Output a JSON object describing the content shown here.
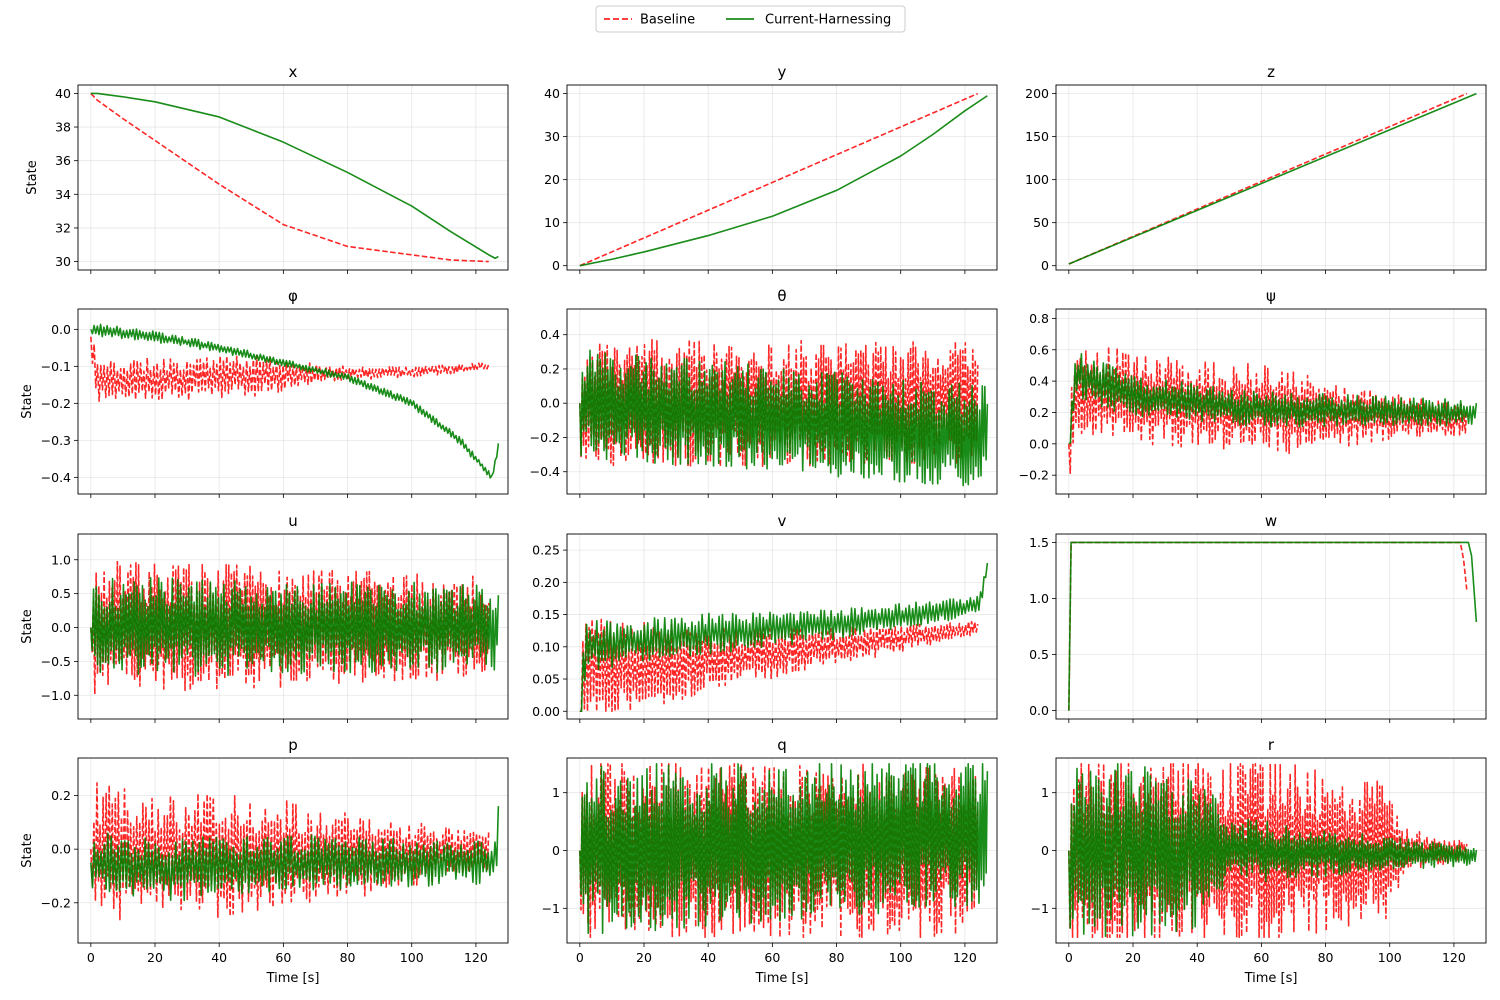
{
  "chart_data": {
    "type": "line",
    "legend": {
      "placement": "top-center",
      "entries": [
        {
          "name": "Baseline",
          "color": "#ff0000",
          "style": "dashed"
        },
        {
          "name": "Current-Harnessing",
          "color": "#008000",
          "style": "solid"
        }
      ]
    },
    "xlabel": "Time [s]",
    "ylabel": "State",
    "xlim": [
      -4,
      130
    ],
    "xticks": [
      0,
      20,
      40,
      60,
      80,
      100,
      120
    ],
    "grid": true,
    "series_names": [
      "Baseline",
      "Current-Harnessing"
    ],
    "panels": [
      {
        "title": "x",
        "ylim": [
          29.5,
          40.5
        ],
        "yticks": [
          30,
          32,
          34,
          36,
          38,
          40
        ],
        "ytick_labels": [
          "30",
          "32",
          "34",
          "36",
          "38",
          "40"
        ],
        "baseline": {
          "kind": "points",
          "points": [
            [
              0,
              40
            ],
            [
              2,
              39.6
            ],
            [
              10,
              38.5
            ],
            [
              20,
              37.2
            ],
            [
              40,
              34.6
            ],
            [
              60,
              32.2
            ],
            [
              80,
              30.9
            ],
            [
              100,
              30.4
            ],
            [
              112,
              30.1
            ],
            [
              124,
              30.0
            ]
          ]
        },
        "current": {
          "kind": "points",
          "points": [
            [
              0,
              40
            ],
            [
              2,
              40
            ],
            [
              10,
              39.8
            ],
            [
              20,
              39.5
            ],
            [
              40,
              38.6
            ],
            [
              60,
              37.1
            ],
            [
              80,
              35.3
            ],
            [
              100,
              33.3
            ],
            [
              112,
              31.8
            ],
            [
              124,
              30.4
            ],
            [
              126,
              30.2
            ],
            [
              127,
              30.3
            ]
          ]
        }
      },
      {
        "title": "y",
        "ylim": [
          -1,
          42
        ],
        "yticks": [
          0,
          10,
          20,
          30,
          40
        ],
        "ytick_labels": [
          "0",
          "10",
          "20",
          "30",
          "40"
        ],
        "baseline": {
          "kind": "points",
          "points": [
            [
              0,
              0
            ],
            [
              124,
              40
            ]
          ]
        },
        "current": {
          "kind": "points",
          "points": [
            [
              0,
              0
            ],
            [
              10,
              1.5
            ],
            [
              20,
              3.2
            ],
            [
              40,
              7
            ],
            [
              60,
              11.5
            ],
            [
              80,
              17.5
            ],
            [
              100,
              25.5
            ],
            [
              110,
              30.5
            ],
            [
              120,
              36
            ],
            [
              127,
              39.5
            ]
          ]
        }
      },
      {
        "title": "z",
        "ylim": [
          -5,
          210
        ],
        "yticks": [
          0,
          50,
          100,
          150,
          200
        ],
        "ytick_labels": [
          "0",
          "50",
          "100",
          "150",
          "200"
        ],
        "baseline": {
          "kind": "points",
          "points": [
            [
              0,
              2
            ],
            [
              124,
              200
            ]
          ]
        },
        "current": {
          "kind": "points",
          "points": [
            [
              0,
              2
            ],
            [
              127,
              200
            ]
          ]
        }
      },
      {
        "title": "φ",
        "ylim": [
          -0.445,
          0.055
        ],
        "yticks": [
          -0.4,
          -0.3,
          -0.2,
          -0.1,
          0.0
        ],
        "ytick_labels": [
          "−0.4",
          "−0.3",
          "−0.2",
          "−0.1",
          "0.0"
        ],
        "baseline": {
          "kind": "noise",
          "seed": 11,
          "t_end": 124,
          "n": 240,
          "min": -0.2,
          "max": 0.0,
          "trend": [
            [
              0,
              -0.02
            ],
            [
              2,
              -0.14
            ],
            [
              40,
              -0.13
            ],
            [
              70,
              -0.12
            ],
            [
              100,
              -0.115
            ],
            [
              124,
              -0.1
            ]
          ],
          "amp": [
            [
              0,
              0.06
            ],
            [
              50,
              0.06
            ],
            [
              75,
              0.02
            ],
            [
              124,
              0.01
            ]
          ]
        },
        "current": {
          "kind": "noise",
          "seed": 21,
          "t_end": 127,
          "n": 250,
          "min": -0.43,
          "max": 0.04,
          "trend": [
            [
              0,
              0.0
            ],
            [
              20,
              -0.02
            ],
            [
              40,
              -0.05
            ],
            [
              60,
              -0.09
            ],
            [
              80,
              -0.13
            ],
            [
              100,
              -0.2
            ],
            [
              115,
              -0.3
            ],
            [
              125,
              -0.4
            ],
            [
              127,
              -0.32
            ]
          ],
          "amp": [
            [
              0,
              0.018
            ],
            [
              60,
              0.01
            ],
            [
              127,
              0.012
            ]
          ]
        }
      },
      {
        "title": "θ",
        "ylim": [
          -0.53,
          0.55
        ],
        "yticks": [
          -0.4,
          -0.2,
          0.0,
          0.2,
          0.4
        ],
        "ytick_labels": [
          "−0.4",
          "−0.2",
          "0.0",
          "0.2",
          "0.4"
        ],
        "baseline": {
          "kind": "noise",
          "seed": 3,
          "t_end": 124,
          "n": 320,
          "min": -0.5,
          "max": 0.5,
          "trend": [
            [
              0,
              0
            ],
            [
              124,
              0
            ]
          ],
          "amp": [
            [
              0,
              0.38
            ],
            [
              124,
              0.36
            ]
          ]
        },
        "current": {
          "kind": "noise",
          "seed": 4,
          "t_end": 127,
          "n": 320,
          "min": -0.48,
          "max": 0.5,
          "trend": [
            [
              0,
              0
            ],
            [
              127,
              -0.2
            ]
          ],
          "amp": [
            [
              0,
              0.32
            ],
            [
              127,
              0.3
            ]
          ]
        }
      },
      {
        "title": "ψ",
        "ylim": [
          -0.32,
          0.86
        ],
        "yticks": [
          -0.2,
          0.0,
          0.2,
          0.4,
          0.6,
          0.8
        ],
        "ytick_labels": [
          "−0.2",
          "0.0",
          "0.2",
          "0.4",
          "0.6",
          "0.8"
        ],
        "baseline": {
          "kind": "noise",
          "seed": 5,
          "t_end": 124,
          "n": 280,
          "min": -0.28,
          "max": 0.78,
          "trend": [
            [
              0,
              0.0
            ],
            [
              3,
              0.35
            ],
            [
              40,
              0.25
            ],
            [
              80,
              0.2
            ],
            [
              124,
              0.15
            ]
          ],
          "amp": [
            [
              0,
              0.3
            ],
            [
              70,
              0.28
            ],
            [
              100,
              0.15
            ],
            [
              124,
              0.1
            ]
          ]
        },
        "current": {
          "kind": "noise",
          "seed": 6,
          "t_end": 127,
          "n": 260,
          "min": -0.05,
          "max": 0.75,
          "trend": [
            [
              0,
              0.0
            ],
            [
              2,
              0.45
            ],
            [
              20,
              0.3
            ],
            [
              60,
              0.22
            ],
            [
              127,
              0.2
            ]
          ],
          "amp": [
            [
              0,
              0.15
            ],
            [
              127,
              0.08
            ]
          ]
        }
      },
      {
        "title": "u",
        "ylim": [
          -1.35,
          1.38
        ],
        "yticks": [
          -1.0,
          -0.5,
          0.0,
          0.5,
          1.0
        ],
        "ytick_labels": [
          "−1.0",
          "−0.5",
          "0.0",
          "0.5",
          "1.0"
        ],
        "baseline": {
          "kind": "noise",
          "seed": 7,
          "t_end": 124,
          "n": 300,
          "min": -1.22,
          "max": 1.27,
          "trend": [
            [
              0,
              0
            ],
            [
              124,
              0
            ]
          ],
          "amp": [
            [
              0,
              1.0
            ],
            [
              60,
              0.9
            ],
            [
              124,
              0.75
            ]
          ]
        },
        "current": {
          "kind": "noise",
          "seed": 8,
          "t_end": 127,
          "n": 300,
          "min": -0.95,
          "max": 0.9,
          "trend": [
            [
              0,
              0
            ],
            [
              127,
              0
            ]
          ],
          "amp": [
            [
              0,
              0.75
            ],
            [
              127,
              0.65
            ]
          ]
        }
      },
      {
        "title": "v",
        "ylim": [
          -0.012,
          0.275
        ],
        "yticks": [
          0.0,
          0.05,
          0.1,
          0.15,
          0.2,
          0.25
        ],
        "ytick_labels": [
          "0.00",
          "0.05",
          "0.10",
          "0.15",
          "0.20",
          "0.25"
        ],
        "baseline": {
          "kind": "noise",
          "seed": 9,
          "t_end": 124,
          "n": 260,
          "min": 0.0,
          "max": 0.262,
          "trend": [
            [
              0,
              0.0
            ],
            [
              2,
              0.06
            ],
            [
              40,
              0.08
            ],
            [
              80,
              0.1
            ],
            [
              124,
              0.13
            ]
          ],
          "amp": [
            [
              0,
              0.09
            ],
            [
              40,
              0.05
            ],
            [
              80,
              0.03
            ],
            [
              124,
              0.01
            ]
          ]
        },
        "current": {
          "kind": "noise",
          "seed": 10,
          "t_end": 127,
          "n": 240,
          "min": 0.0,
          "max": 0.23,
          "trend": [
            [
              0,
              0.0
            ],
            [
              2,
              0.1
            ],
            [
              40,
              0.12
            ],
            [
              80,
              0.135
            ],
            [
              120,
              0.16
            ],
            [
              125,
              0.17
            ],
            [
              127,
              0.23
            ]
          ],
          "amp": [
            [
              0,
              0.04
            ],
            [
              127,
              0.015
            ]
          ]
        }
      },
      {
        "title": "w",
        "ylim": [
          -0.075,
          1.575
        ],
        "yticks": [
          0.0,
          0.5,
          1.0,
          1.5
        ],
        "ytick_labels": [
          "0.0",
          "0.5",
          "1.0",
          "1.5"
        ],
        "baseline": {
          "kind": "points",
          "points": [
            [
              0,
              0
            ],
            [
              0.7,
              1.5
            ],
            [
              122,
              1.5
            ],
            [
              123,
              1.35
            ],
            [
              124,
              1.08
            ]
          ]
        },
        "current": {
          "kind": "points",
          "points": [
            [
              0,
              0
            ],
            [
              0.7,
              1.5
            ],
            [
              124.5,
              1.5
            ],
            [
              125.5,
              1.38
            ],
            [
              127,
              0.79
            ]
          ]
        }
      },
      {
        "title": "p",
        "ylim": [
          -0.35,
          0.34
        ],
        "yticks": [
          -0.2,
          0.0,
          0.2
        ],
        "ytick_labels": [
          "−0.2",
          "0.0",
          "0.2"
        ],
        "baseline": {
          "kind": "noise",
          "seed": 12,
          "t_end": 124,
          "n": 260,
          "min": -0.32,
          "max": 0.31,
          "trend": [
            [
              0,
              0
            ],
            [
              20,
              -0.02
            ],
            [
              60,
              -0.03
            ],
            [
              100,
              -0.02
            ],
            [
              124,
              0
            ]
          ],
          "amp": [
            [
              0,
              0.26
            ],
            [
              60,
              0.22
            ],
            [
              100,
              0.12
            ],
            [
              124,
              0.08
            ]
          ]
        },
        "current": {
          "kind": "noise",
          "seed": 13,
          "t_end": 127,
          "n": 240,
          "min": -0.3,
          "max": 0.2,
          "trend": [
            [
              0,
              -0.05
            ],
            [
              20,
              -0.08
            ],
            [
              60,
              -0.05
            ],
            [
              126,
              -0.05
            ],
            [
              127,
              0.09
            ]
          ],
          "amp": [
            [
              0,
              0.13
            ],
            [
              127,
              0.08
            ]
          ]
        }
      },
      {
        "title": "q",
        "ylim": [
          -1.6,
          1.6
        ],
        "yticks": [
          -1,
          0,
          1
        ],
        "ytick_labels": [
          "−1",
          "0",
          "1"
        ],
        "baseline": {
          "kind": "noise",
          "seed": 14,
          "t_end": 124,
          "n": 340,
          "min": -1.5,
          "max": 1.5,
          "trend": [
            [
              0,
              0
            ],
            [
              124,
              0
            ]
          ],
          "amp": [
            [
              0,
              1.6
            ],
            [
              124,
              1.5
            ]
          ]
        },
        "current": {
          "kind": "noise",
          "seed": 15,
          "t_end": 127,
          "n": 340,
          "min": -1.5,
          "max": 1.5,
          "trend": [
            [
              0,
              0
            ],
            [
              127,
              0.3
            ]
          ],
          "amp": [
            [
              0,
              1.5
            ],
            [
              127,
              1.3
            ]
          ]
        }
      },
      {
        "title": "r",
        "ylim": [
          -1.6,
          1.6
        ],
        "yticks": [
          -1,
          0,
          1
        ],
        "ytick_labels": [
          "−1",
          "0",
          "1"
        ],
        "baseline": {
          "kind": "noise",
          "seed": 16,
          "t_end": 124,
          "n": 320,
          "min": -1.5,
          "max": 1.5,
          "trend": [
            [
              0,
              0
            ],
            [
              124,
              0
            ]
          ],
          "amp": [
            [
              0,
              1.8
            ],
            [
              60,
              1.6
            ],
            [
              100,
              1.2
            ],
            [
              104,
              0.4
            ],
            [
              124,
              0.15
            ]
          ]
        },
        "current": {
          "kind": "noise",
          "seed": 17,
          "t_end": 127,
          "n": 300,
          "min": -1.5,
          "max": 1.5,
          "trend": [
            [
              0,
              0
            ],
            [
              60,
              0
            ],
            [
              127,
              -0.1
            ]
          ],
          "amp": [
            [
              0,
              1.7
            ],
            [
              40,
              1.4
            ],
            [
              50,
              0.6
            ],
            [
              127,
              0.15
            ]
          ]
        }
      }
    ]
  }
}
